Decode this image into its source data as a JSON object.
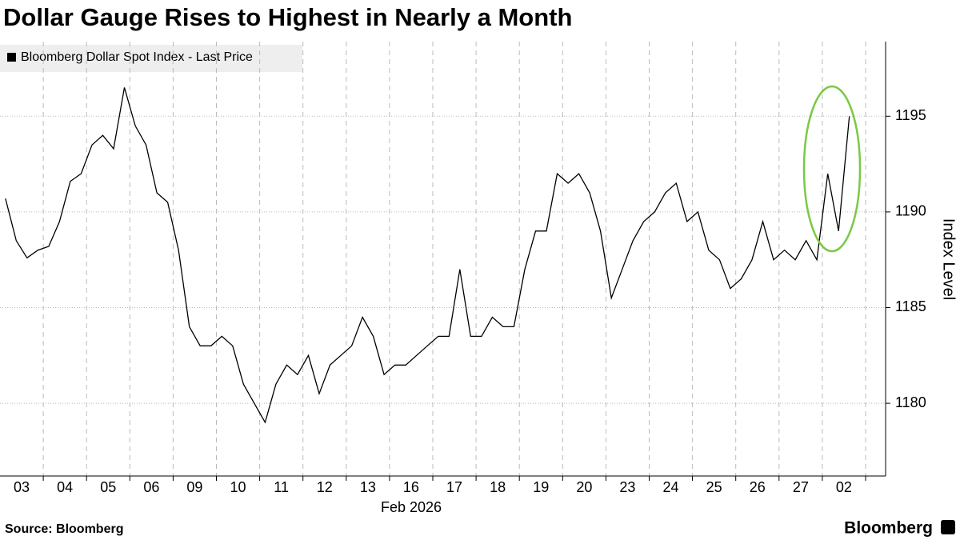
{
  "chart_data": {
    "type": "line",
    "title": "Dollar Gauge Rises to Highest in Nearly a Month",
    "x_label_sub": "Feb 2026",
    "y_label": "Index Level",
    "source": "Source: Bloomberg",
    "brand": "Bloomberg",
    "categories": [
      "03",
      null,
      null,
      null,
      "04",
      null,
      null,
      null,
      "05",
      null,
      null,
      null,
      "06",
      null,
      null,
      null,
      "09",
      null,
      null,
      null,
      "10",
      null,
      null,
      null,
      "11",
      null,
      null,
      null,
      "12",
      null,
      null,
      null,
      "13",
      null,
      null,
      null,
      "16",
      null,
      null,
      null,
      "17",
      null,
      null,
      null,
      "18",
      null,
      null,
      null,
      "19",
      null,
      null,
      null,
      "20",
      null,
      null,
      null,
      "23",
      null,
      null,
      null,
      "24",
      null,
      null,
      null,
      "25",
      null,
      null,
      null,
      "26",
      null,
      null,
      null,
      "27",
      null,
      null,
      null,
      "02",
      null,
      null
    ],
    "series": [
      {
        "name": "Bloomberg Dollar Spot Index - Last Price",
        "color": "#000000",
        "values": [
          1190.7,
          1188.5,
          1187.6,
          1188.0,
          1188.2,
          1189.5,
          1191.6,
          1192.0,
          1193.5,
          1194.0,
          1193.3,
          1196.5,
          1194.5,
          1193.5,
          1191.0,
          1190.5,
          1188.0,
          1184.0,
          1183.0,
          1183.0,
          1183.5,
          1183.0,
          1181.0,
          1180.0,
          1179.0,
          1181.0,
          1182.0,
          1181.5,
          1182.5,
          1180.5,
          1182.0,
          1182.5,
          1183.0,
          1184.5,
          1183.5,
          1181.5,
          1182.0,
          1182.0,
          1182.5,
          1183.0,
          1183.5,
          1183.5,
          1187.0,
          1183.5,
          1183.5,
          1184.5,
          1184.0,
          1184.0,
          1187.0,
          1189.0,
          1189.0,
          1192.0,
          1191.5,
          1192.0,
          1191.0,
          1189.0,
          1185.5,
          1187.0,
          1188.5,
          1189.5,
          1190.0,
          1191.0,
          1191.5,
          1189.5,
          1190.0,
          1188.0,
          1187.5,
          1186.0,
          1186.5,
          1187.5,
          1189.5,
          1187.5,
          1188.0,
          1187.5,
          1188.5,
          1187.5,
          1192.0,
          1189.0,
          1195.0
        ]
      }
    ],
    "ylim": [
      1176.2,
      1198.9
    ],
    "yticks": [
      1180,
      1185,
      1190,
      1195
    ],
    "grid": true
  }
}
